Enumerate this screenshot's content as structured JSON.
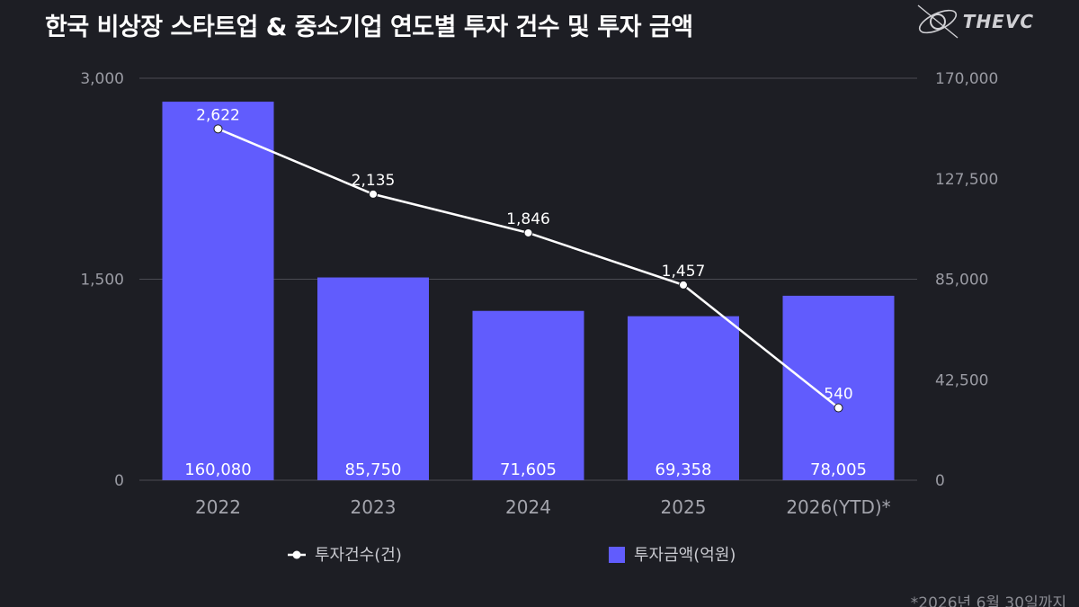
{
  "title": "한국 비상장 스타트업 & 중소기업 연도별 투자 건수 및 투자 금액",
  "logo": {
    "text": "THEVC",
    "icon": "thevc-orbit-logo"
  },
  "footnote": "*2026년 6월 30일까지",
  "colors": {
    "background": "#1d1e24",
    "bar": "#615cfd",
    "line": "#ffffff",
    "grid": "#4a4b52",
    "axis_text": "#9a9ba3"
  },
  "chart_data": {
    "type": "bar",
    "title": "한국 비상장 스타트업 & 중소기업 연도별 투자 건수 및 투자 금액",
    "categories": [
      "2022",
      "2023",
      "2024",
      "2025",
      "2026(YTD)*"
    ],
    "series": [
      {
        "name": "투자금액(억원)",
        "type": "bar",
        "axis": "right",
        "values": [
          160080,
          85750,
          71605,
          69358,
          78005
        ],
        "labels": [
          "160,080",
          "85,750",
          "71,605",
          "69,358",
          "78,005"
        ]
      },
      {
        "name": "투자건수(건)",
        "type": "line",
        "axis": "left",
        "values": [
          2622,
          2135,
          1846,
          1457,
          540
        ],
        "labels": [
          "2,622",
          "2,135",
          "1,846",
          "1,457",
          "540"
        ]
      }
    ],
    "y_left": {
      "ylim": [
        0,
        3000
      ],
      "ticks": [
        0,
        1500,
        3000
      ],
      "tick_labels": [
        "0",
        "1,500",
        "3,000"
      ]
    },
    "y_right": {
      "ylim": [
        0,
        170000
      ],
      "ticks": [
        0,
        42500,
        85000,
        127500,
        170000
      ],
      "tick_labels": [
        "0",
        "42,500",
        "85,000",
        "127,500",
        "170,000"
      ]
    },
    "grid": "horizontal",
    "legend": "bottom-center"
  }
}
